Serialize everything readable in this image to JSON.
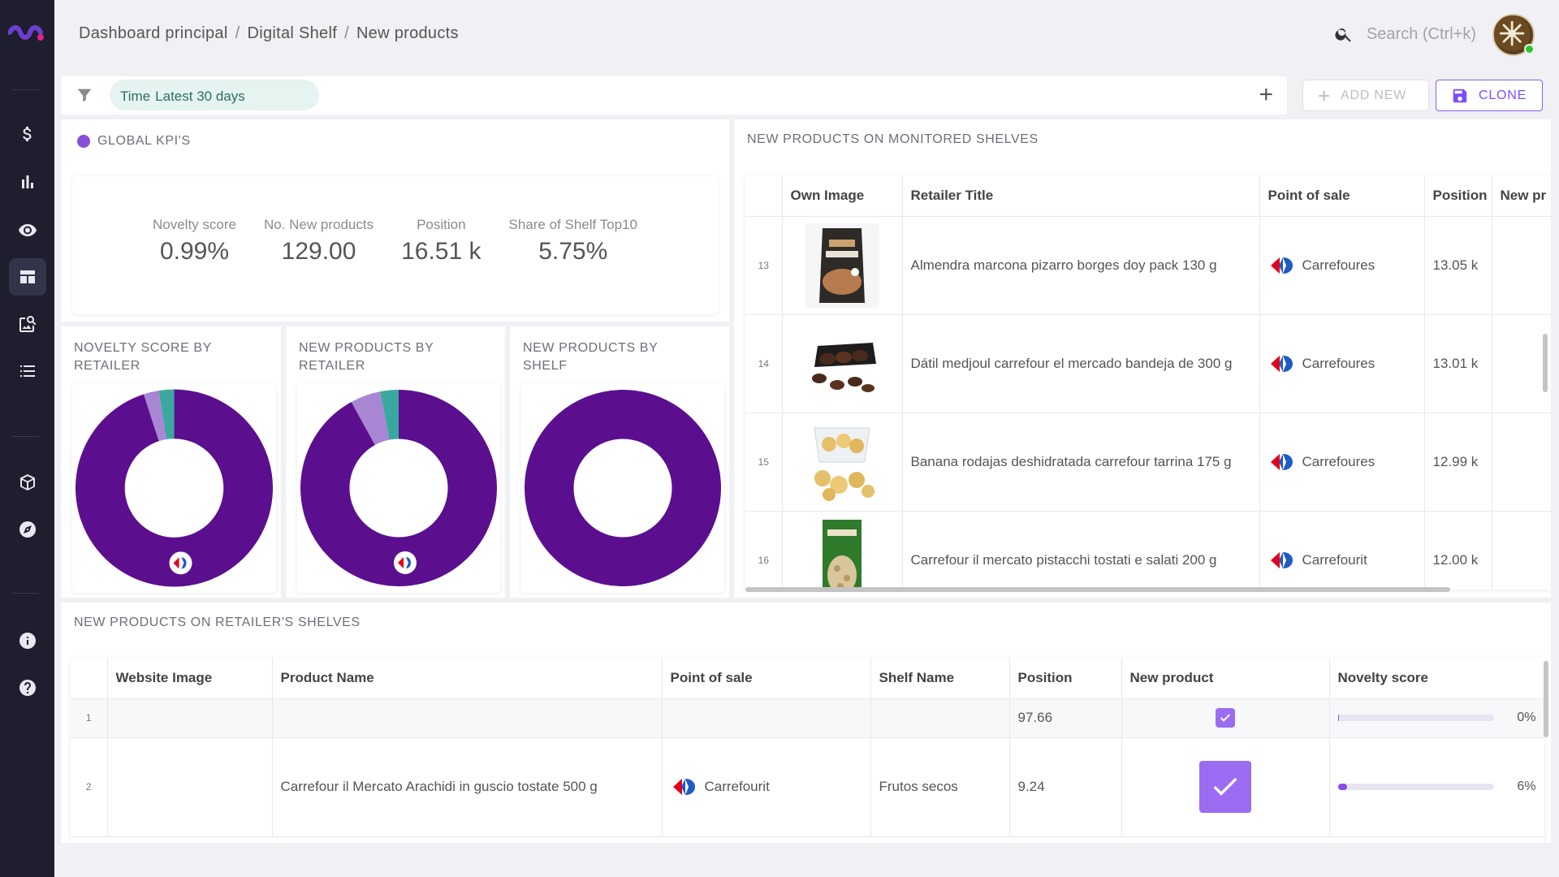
{
  "breadcrumb": [
    "Dashboard principal",
    "Digital Shelf",
    "New products"
  ],
  "breadcrumb_separator": "/",
  "search": {
    "placeholder": "Search (Ctrl+k)"
  },
  "filter": {
    "chip_label": "Time",
    "chip_value": "Latest 30 days"
  },
  "actions": {
    "add_new": "ADD NEW",
    "clone": "CLONE"
  },
  "colors": {
    "primary": "#5b0f8e",
    "accent": "#8b4fd6",
    "teal": "#3aa89e",
    "light_purple": "#a986d4",
    "sidebar": "#1e1e2e"
  },
  "sidebar_icons": [
    "logo-icon",
    "dollar-icon",
    "bar-chart-icon",
    "eye-icon",
    "dashboard-icon",
    "image-search-icon",
    "list-icon",
    "box-icon",
    "compass-icon",
    "info-icon",
    "help-icon"
  ],
  "kpi_panel": {
    "title": "GLOBAL KPI'S",
    "items": [
      {
        "label": "Novelty score",
        "value": "0.99%"
      },
      {
        "label": "No. New products",
        "value": "129.00"
      },
      {
        "label": "Position",
        "value": "16.51 k"
      },
      {
        "label": "Share of Shelf Top10",
        "value": "5.75%"
      }
    ]
  },
  "donuts": [
    {
      "title": "NOVELTY SCORE BY RETAILER",
      "slices": [
        {
          "value": 95,
          "color": "#5b0f8e"
        },
        {
          "value": 2.5,
          "color": "#a986d4"
        },
        {
          "value": 2.5,
          "color": "#3aa89e"
        }
      ],
      "logo": true
    },
    {
      "title": "NEW PRODUCTS BY RETAILER",
      "slices": [
        {
          "value": 92,
          "color": "#5b0f8e"
        },
        {
          "value": 5,
          "color": "#a986d4"
        },
        {
          "value": 3,
          "color": "#3aa89e"
        }
      ],
      "logo": true
    },
    {
      "title": "NEW PRODUCTS BY SHELF",
      "slices": [
        {
          "value": 100,
          "color": "#5b0f8e"
        }
      ],
      "logo": false
    }
  ],
  "monitored": {
    "title": "NEW PRODUCTS ON MONITORED SHELVES",
    "columns": [
      "Own Image",
      "Retailer Title",
      "Point of sale",
      "Position",
      "New pr"
    ],
    "rows": [
      {
        "index": "13",
        "title": "Almendra marcona pizarro borges doy pack 130 g",
        "pos": "Carrefoures",
        "position": "13.05 k",
        "image": "almond-bag"
      },
      {
        "index": "14",
        "title": "Dátil medjoul carrefour el mercado bandeja de 300 g",
        "pos": "Carrefoures",
        "position": "13.01 k",
        "image": "dates-tray"
      },
      {
        "index": "15",
        "title": "Banana rodajas deshidratada carrefour tarrina 175 g",
        "pos": "Carrefoures",
        "position": "12.99 k",
        "image": "banana-chips"
      },
      {
        "index": "16",
        "title": "Carrefour il mercato pistacchi tostati e salati 200 g",
        "pos": "Carrefourit",
        "position": "12.00 k",
        "image": "pistachio-bag"
      }
    ]
  },
  "retailer_shelves": {
    "title": "NEW PRODUCTS ON RETAILER'S SHELVES",
    "columns": [
      "Website Image",
      "Product Name",
      "Point of sale",
      "Shelf Name",
      "Position",
      "New product",
      "Novelty score"
    ],
    "rows": [
      {
        "index": "1",
        "product": "",
        "pos": "",
        "shelf": "",
        "position": "97.66",
        "new_product": true,
        "novelty": 0,
        "novelty_label": "0%"
      },
      {
        "index": "2",
        "product": "Carrefour il Mercato Arachidi in guscio tostate 500 g",
        "pos": "Carrefourit",
        "shelf": "Frutos secos",
        "position": "9.24",
        "new_product": true,
        "novelty": 6,
        "novelty_label": "6%"
      }
    ]
  }
}
